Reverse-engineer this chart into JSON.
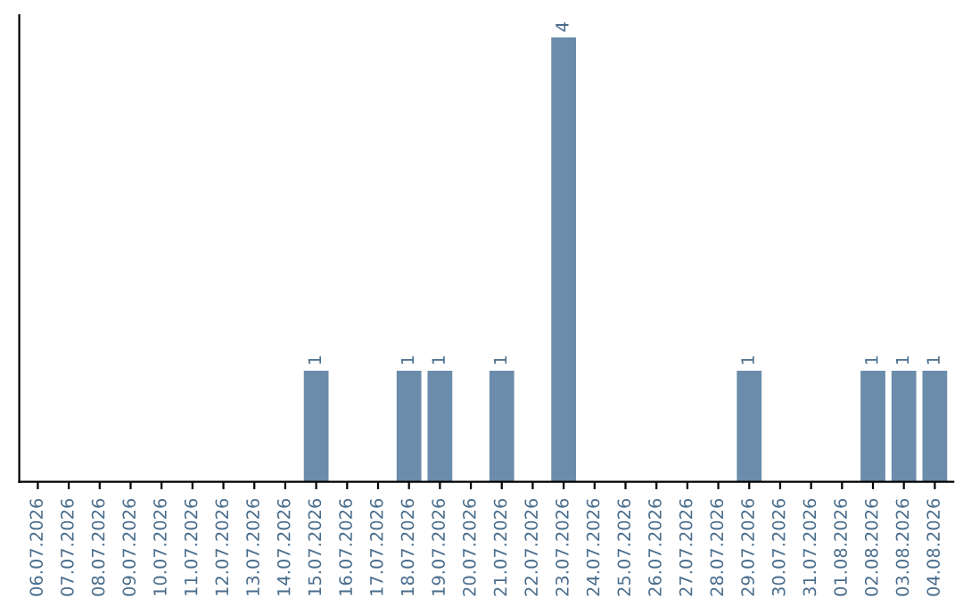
{
  "chart_data": {
    "type": "bar",
    "categories": [
      "06.07.2026",
      "07.07.2026",
      "08.07.2026",
      "09.07.2026",
      "10.07.2026",
      "11.07.2026",
      "12.07.2026",
      "13.07.2026",
      "14.07.2026",
      "15.07.2026",
      "16.07.2026",
      "17.07.2026",
      "18.07.2026",
      "19.07.2026",
      "20.07.2026",
      "21.07.2026",
      "22.07.2026",
      "23.07.2026",
      "24.07.2026",
      "25.07.2026",
      "26.07.2026",
      "27.07.2026",
      "28.07.2026",
      "29.07.2026",
      "30.07.2026",
      "31.07.2026",
      "01.08.2026",
      "02.08.2026",
      "03.08.2026",
      "04.08.2026"
    ],
    "values": [
      0,
      0,
      0,
      0,
      0,
      0,
      0,
      0,
      0,
      1,
      0,
      0,
      1,
      1,
      0,
      1,
      0,
      4,
      0,
      0,
      0,
      0,
      0,
      1,
      0,
      0,
      0,
      1,
      1,
      1
    ],
    "value_labels": [
      null,
      null,
      null,
      null,
      null,
      null,
      null,
      null,
      null,
      "1",
      null,
      null,
      "1",
      "1",
      null,
      "1",
      null,
      "4",
      null,
      null,
      null,
      null,
      null,
      "1",
      null,
      null,
      null,
      "1",
      "1",
      "1"
    ],
    "color": "#6b8cab",
    "tick_labels": "x",
    "grid": false
  }
}
